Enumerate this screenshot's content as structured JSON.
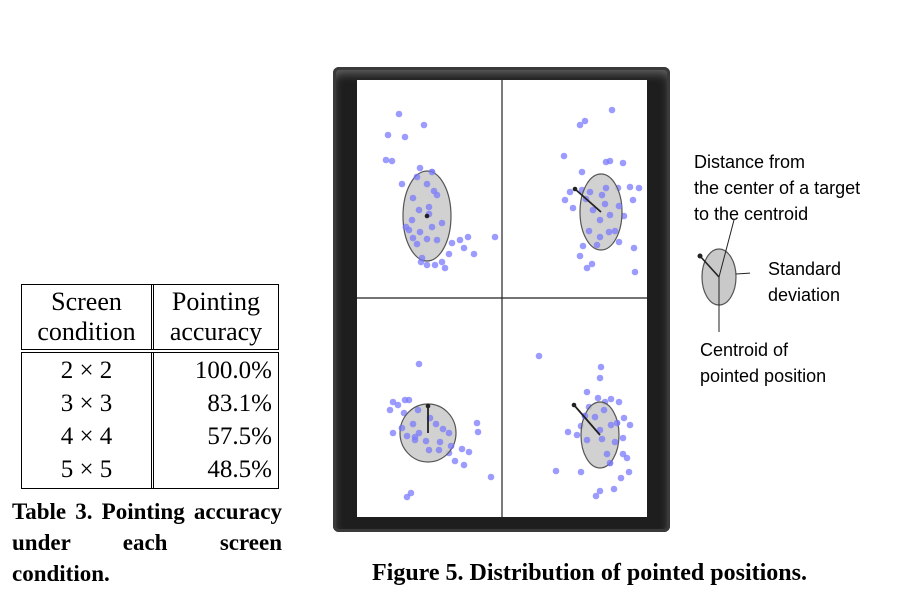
{
  "table": {
    "header": {
      "col1": "Screen\ncondition",
      "col2": "Pointing\naccuracy"
    },
    "rows": [
      {
        "condition": "2 × 2",
        "accuracy": "100.0%"
      },
      {
        "condition": "3 × 3",
        "accuracy": "83.1%"
      },
      {
        "condition": "4 × 4",
        "accuracy": "57.5%"
      },
      {
        "condition": "5 × 5",
        "accuracy": "48.5%"
      }
    ],
    "caption": "Table 3. Pointing accuracy under each screen condition."
  },
  "figure": {
    "caption": "Figure 5. Distribution of pointed positions.",
    "legend": {
      "distance": "Distance from\nthe center of a target\nto the centroid",
      "std": "Standard\ndeviation",
      "centroid": "Centroid of\npointed position"
    },
    "colors": {
      "point": "#7b7bff",
      "ellipse_fill": "#c9c9c9",
      "ellipse_stroke": "#555555",
      "phone_bezel": "#1e1e1e"
    }
  }
}
